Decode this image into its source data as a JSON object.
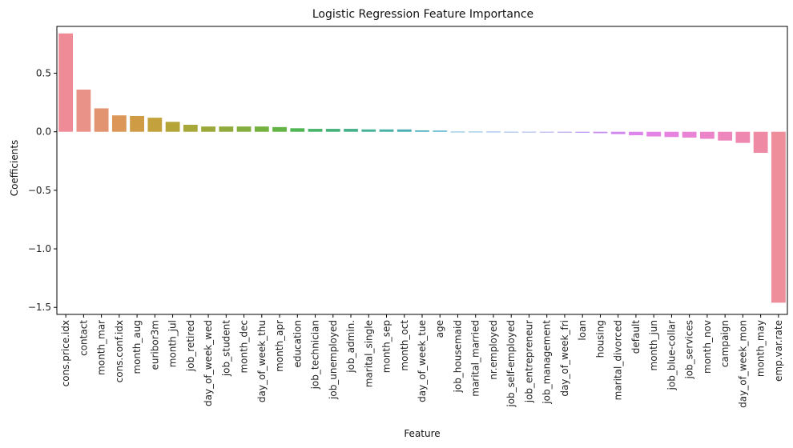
{
  "chart_data": {
    "type": "bar",
    "title": "Logistic Regression Feature Importance",
    "xlabel": "Feature",
    "ylabel": "Coefficients",
    "ylim": [
      -1.56,
      0.9
    ],
    "yticks": [
      0.5,
      0.0,
      -0.5,
      -1.0,
      -1.5
    ],
    "ytick_labels": [
      "0.5",
      "0.0",
      "−0.5",
      "−1.0",
      "−1.5"
    ],
    "grid": false,
    "legend": "none",
    "categories": [
      "cons.price.idx",
      "contact",
      "month_mar",
      "cons.conf.idx",
      "month_aug",
      "euribor3m",
      "month_jul",
      "job_retired",
      "day_of_week_wed",
      "job_student",
      "month_dec",
      "day_of_week_thu",
      "month_apr",
      "education",
      "job_technician",
      "job_unemployed",
      "job_admin.",
      "marital_single",
      "month_sep",
      "month_oct",
      "day_of_week_tue",
      "age",
      "job_housemaid",
      "marital_married",
      "nr.employed",
      "job_self-employed",
      "job_entrepreneur",
      "job_management",
      "day_of_week_fri",
      "loan",
      "housing",
      "marital_divorced",
      "default",
      "month_jun",
      "job_blue-collar",
      "job_services",
      "month_nov",
      "campaign",
      "day_of_week_mon",
      "month_may",
      "emp.var.rate"
    ],
    "values": [
      0.84,
      0.36,
      0.2,
      0.14,
      0.135,
      0.12,
      0.085,
      0.06,
      0.045,
      0.045,
      0.045,
      0.045,
      0.04,
      0.03,
      0.025,
      0.025,
      0.025,
      0.02,
      0.02,
      0.02,
      0.012,
      0.01,
      0.001,
      0.001,
      0.001,
      0.0,
      -0.005,
      -0.006,
      -0.007,
      -0.008,
      -0.012,
      -0.02,
      -0.03,
      -0.04,
      -0.045,
      -0.05,
      -0.06,
      -0.075,
      -0.095,
      -0.18,
      -1.46
    ],
    "colors": [
      "#ee8b97",
      "#e89288",
      "#e2936f",
      "#dc9758",
      "#cf9b45",
      "#c3a23d",
      "#b5a539",
      "#a8a83a",
      "#9ca93a",
      "#90ab3b",
      "#84ae3d",
      "#74b13f",
      "#63b444",
      "#4fb653",
      "#47b46a",
      "#45b27b",
      "#46b18a",
      "#47b198",
      "#48b0a6",
      "#4aafb5",
      "#4cadc0",
      "#4fadcc",
      "#55a9d4",
      "#5ea8dc",
      "#6aa4e1",
      "#7ba1e4",
      "#8c9ee6",
      "#9d9beb",
      "#ac95ee",
      "#bb90ef",
      "#c78cef",
      "#d188ee",
      "#dc85eb",
      "#e383e6",
      "#e682e0",
      "#e983d6",
      "#ec84ca",
      "#ed86bc",
      "#ee88b0",
      "#ee8aa4",
      "#ee8e9a"
    ]
  }
}
